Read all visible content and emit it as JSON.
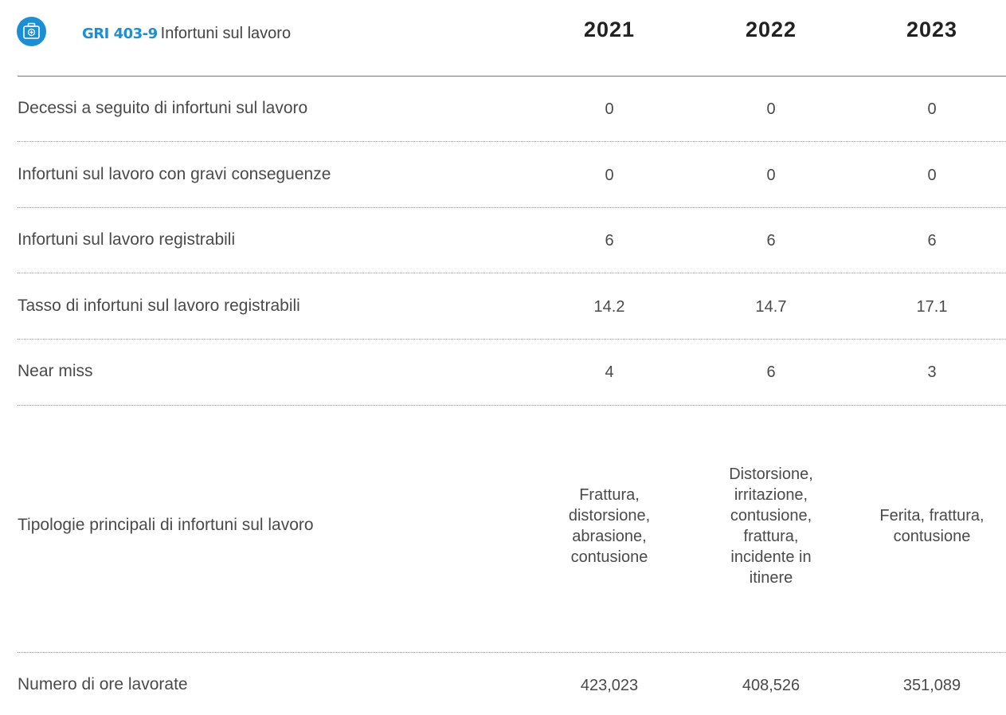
{
  "header": {
    "code": "GRI 403-9",
    "title": "Infortuni sul lavoro",
    "years": [
      "2021",
      "2022",
      "2023"
    ]
  },
  "table": {
    "rows": [
      [
        "Decessi a seguito di infortuni sul lavoro",
        "0",
        "0",
        "0"
      ],
      [
        "Infortuni sul lavoro con gravi conseguenze",
        "0",
        "0",
        "0"
      ],
      [
        "Infortuni sul lavoro registrabili",
        "6",
        "6",
        "6"
      ],
      [
        "Tasso di infortuni sul lavoro registrabili",
        "14.2",
        "14.7",
        "17.1"
      ],
      [
        "Near miss",
        "4",
        "6",
        "3"
      ],
      [
        "Tipologie principali di infortuni sul lavoro",
        "Frattura, distorsione, abrasione, contusione",
        "Distorsione, irritazione, contusione, frattura, incidente in itinere",
        "Ferita, frattura, contusione"
      ],
      [
        "Numero di ore lavorate",
        "423,023",
        "408,526",
        "351,089"
      ]
    ]
  }
}
